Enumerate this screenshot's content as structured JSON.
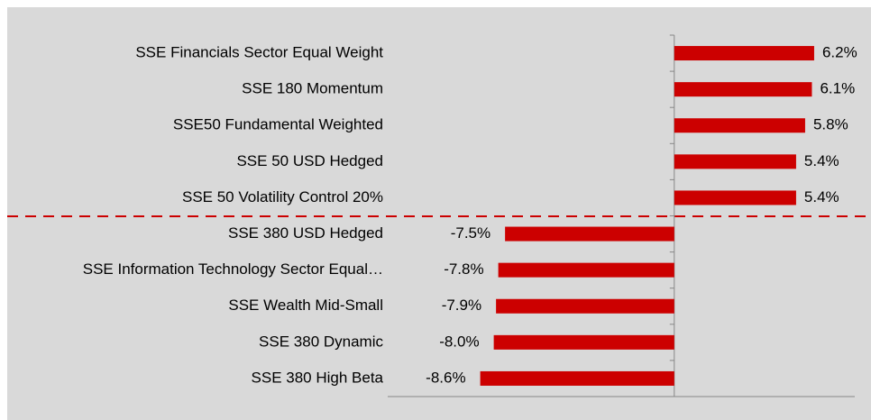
{
  "chart_data": {
    "type": "hbar",
    "categories": [
      "SSE Financials Sector Equal Weight",
      "SSE 180 Momentum",
      "SSE50 Fundamental Weighted",
      "SSE 50 USD Hedged",
      "SSE 50 Volatility Control 20%",
      "SSE 380 USD Hedged",
      "SSE Information Technology Sector Equal…",
      "SSE Wealth Mid-Small",
      "SSE 380 Dynamic",
      "SSE 380 High Beta"
    ],
    "values": [
      6.2,
      6.1,
      5.8,
      5.4,
      5.4,
      -7.5,
      -7.8,
      -7.9,
      -8.0,
      -8.6
    ],
    "value_labels": [
      "6.2%",
      "6.1%",
      "5.8%",
      "5.4%",
      "5.4%",
      "-7.5%",
      "-7.8%",
      "-7.9%",
      "-8.0%",
      "-8.6%"
    ],
    "color": "#cc0000",
    "xlim": [
      -12.7,
      8.0
    ]
  }
}
